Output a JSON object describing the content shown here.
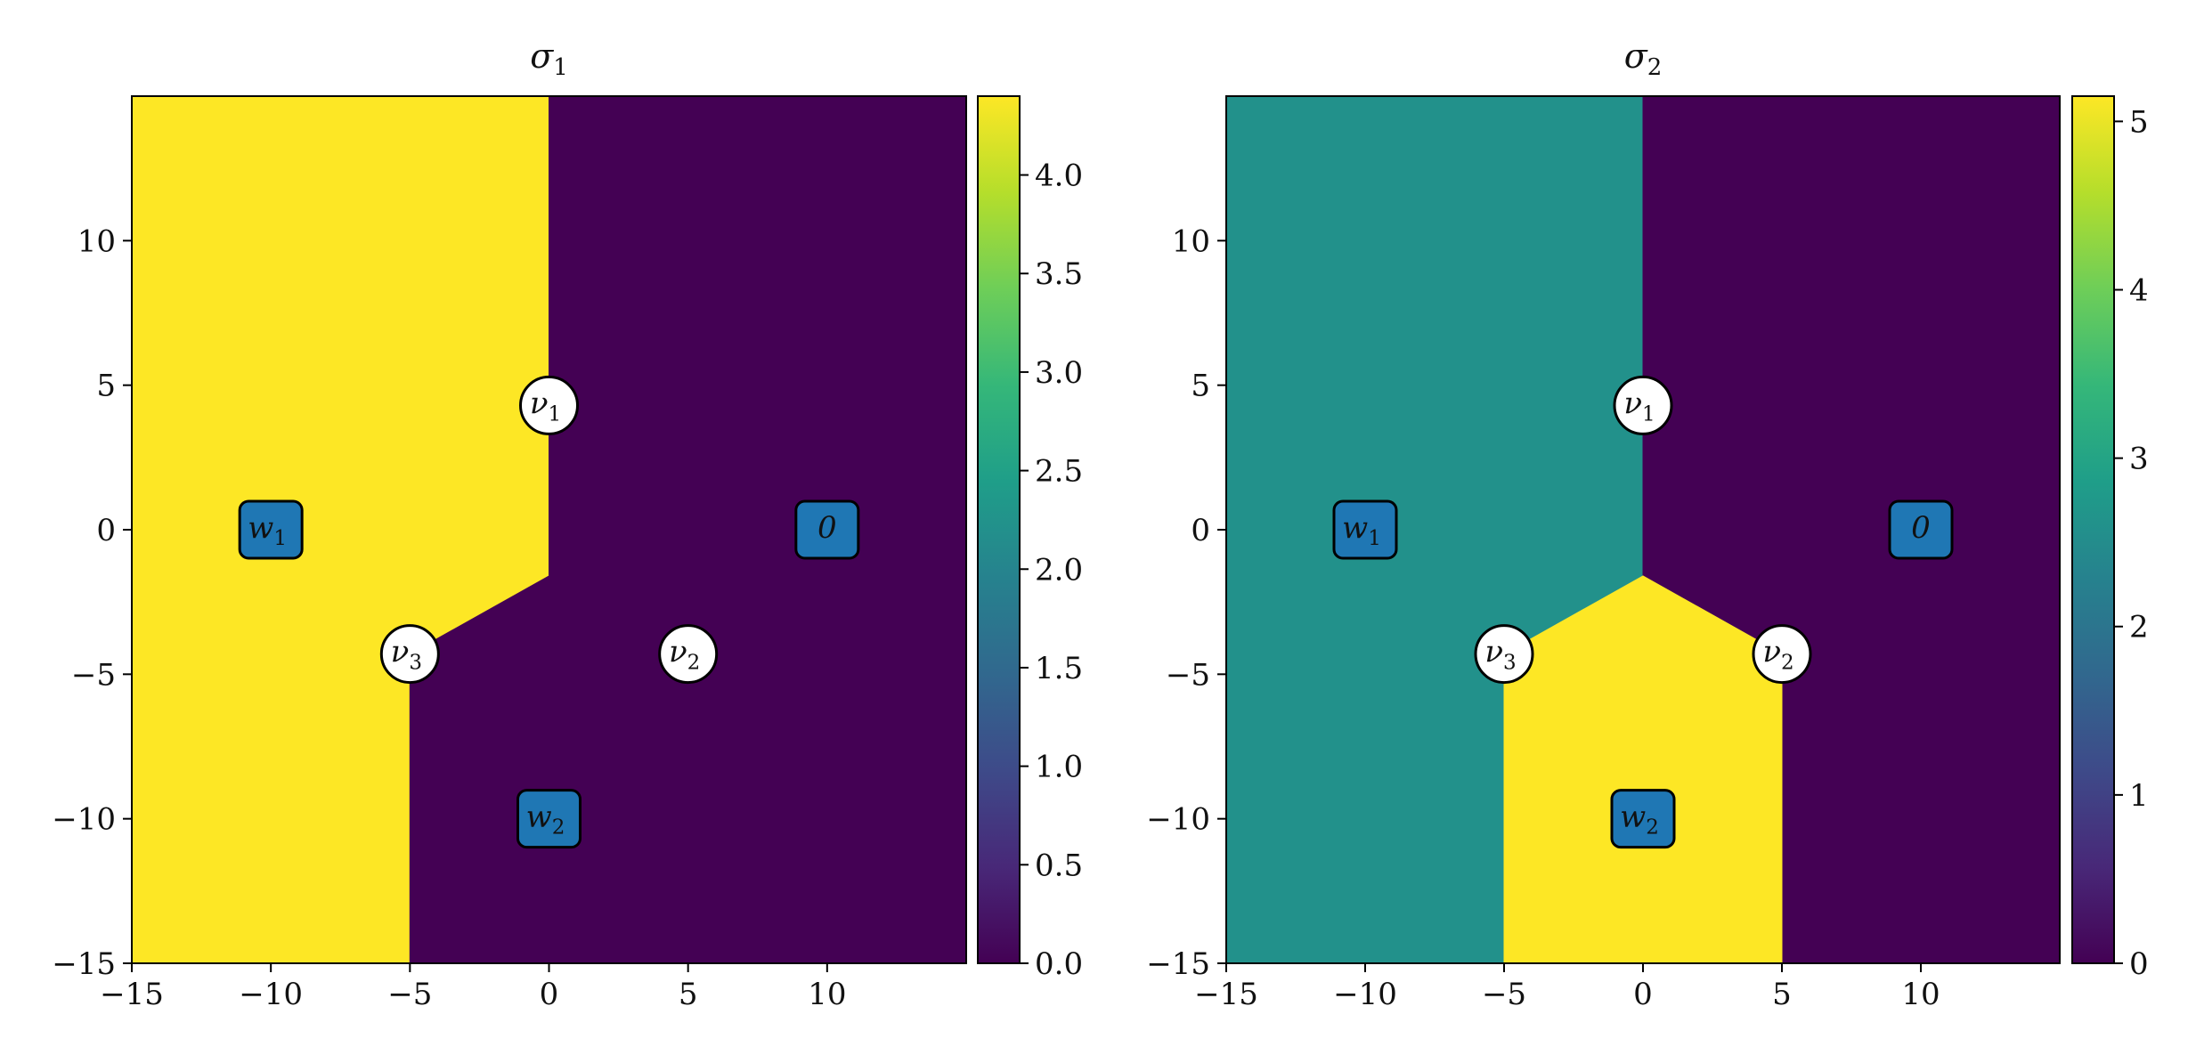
{
  "colors": {
    "viridis_low": "#440154",
    "viridis_mid": "#21908d",
    "viridis_high": "#fde725",
    "box_fill": "#1f77b4",
    "circle_fill": "#ffffff",
    "colormap": [
      "#440154",
      "#482878",
      "#3e4a89",
      "#31688e",
      "#26828e",
      "#1f9e89",
      "#35b779",
      "#6ece58",
      "#b5de2b",
      "#fde725"
    ]
  },
  "chart_data": [
    {
      "type": "heatmap",
      "title": {
        "main": "σ",
        "sub": "1"
      },
      "xlim": [
        -15,
        15
      ],
      "ylim": [
        -15,
        15
      ],
      "xticks": [
        -15,
        -10,
        -5,
        0,
        5,
        10
      ],
      "yticks": [
        -15,
        -10,
        -5,
        0,
        5,
        10
      ],
      "xtick_labels": [
        "−15",
        "−10",
        "−5",
        "0",
        "5",
        "10"
      ],
      "ytick_labels": [
        "−15",
        "−10",
        "−5",
        "0",
        "5",
        "10"
      ],
      "value_range": [
        0,
        4.4
      ],
      "regions": [
        {
          "value": 4.4,
          "polygon": [
            [
              -15,
              15
            ],
            [
              0,
              15
            ],
            [
              0,
              -1.6
            ],
            [
              -5,
              -4.3
            ],
            [
              -5,
              -15
            ],
            [
              -15,
              -15
            ]
          ]
        },
        {
          "value": 0.0,
          "polygon": [
            [
              0,
              15
            ],
            [
              15,
              15
            ],
            [
              15,
              -15
            ],
            [
              -5,
              -15
            ],
            [
              -5,
              -4.3
            ],
            [
              0,
              -1.6
            ]
          ]
        }
      ],
      "colorbar": {
        "ticks": [
          0.0,
          0.5,
          1.0,
          1.5,
          2.0,
          2.5,
          3.0,
          3.5,
          4.0
        ],
        "tick_labels": [
          "0.0",
          "0.5",
          "1.0",
          "1.5",
          "2.0",
          "2.5",
          "3.0",
          "3.5",
          "4.0"
        ]
      },
      "markers": [
        {
          "shape": "box",
          "main": "w",
          "sub": "1",
          "x": -10,
          "y": 0
        },
        {
          "shape": "box",
          "main": "0",
          "sub": "",
          "x": 10,
          "y": 0
        },
        {
          "shape": "box",
          "main": "w",
          "sub": "2",
          "x": 0,
          "y": -10
        },
        {
          "shape": "circle",
          "main": "ν",
          "sub": "1",
          "x": 0,
          "y": 4.3
        },
        {
          "shape": "circle",
          "main": "ν",
          "sub": "2",
          "x": 5,
          "y": -4.3
        },
        {
          "shape": "circle",
          "main": "ν",
          "sub": "3",
          "x": -5,
          "y": -4.3
        }
      ]
    },
    {
      "type": "heatmap",
      "title": {
        "main": "σ",
        "sub": "2"
      },
      "xlim": [
        -15,
        15
      ],
      "ylim": [
        -15,
        15
      ],
      "xticks": [
        -15,
        -10,
        -5,
        0,
        5,
        10
      ],
      "yticks": [
        -15,
        -10,
        -5,
        0,
        5,
        10
      ],
      "xtick_labels": [
        "−15",
        "−10",
        "−5",
        "0",
        "5",
        "10"
      ],
      "ytick_labels": [
        "−15",
        "−10",
        "−5",
        "0",
        "5",
        "10"
      ],
      "value_range": [
        0,
        5.15
      ],
      "regions": [
        {
          "value": 2.6,
          "polygon": [
            [
              -15,
              15
            ],
            [
              0,
              15
            ],
            [
              0,
              -1.6
            ],
            [
              -5,
              -4.3
            ],
            [
              -5,
              -15
            ],
            [
              -15,
              -15
            ]
          ]
        },
        {
          "value": 0.0,
          "polygon": [
            [
              0,
              15
            ],
            [
              15,
              15
            ],
            [
              15,
              -15
            ],
            [
              5,
              -15
            ],
            [
              5,
              -4.3
            ],
            [
              0,
              -1.6
            ]
          ]
        },
        {
          "value": 5.15,
          "polygon": [
            [
              0,
              -1.6
            ],
            [
              5,
              -4.3
            ],
            [
              5,
              -15
            ],
            [
              -5,
              -15
            ],
            [
              -5,
              -4.3
            ]
          ]
        }
      ],
      "colorbar": {
        "ticks": [
          0,
          1,
          2,
          3,
          4,
          5
        ],
        "tick_labels": [
          "0",
          "1",
          "2",
          "3",
          "4",
          "5"
        ]
      },
      "markers": [
        {
          "shape": "box",
          "main": "w",
          "sub": "1",
          "x": -10,
          "y": 0
        },
        {
          "shape": "box",
          "main": "0",
          "sub": "",
          "x": 10,
          "y": 0
        },
        {
          "shape": "box",
          "main": "w",
          "sub": "2",
          "x": 0,
          "y": -10
        },
        {
          "shape": "circle",
          "main": "ν",
          "sub": "1",
          "x": 0,
          "y": 4.3
        },
        {
          "shape": "circle",
          "main": "ν",
          "sub": "2",
          "x": 5,
          "y": -4.3
        },
        {
          "shape": "circle",
          "main": "ν",
          "sub": "3",
          "x": -5,
          "y": -4.3
        }
      ]
    }
  ]
}
